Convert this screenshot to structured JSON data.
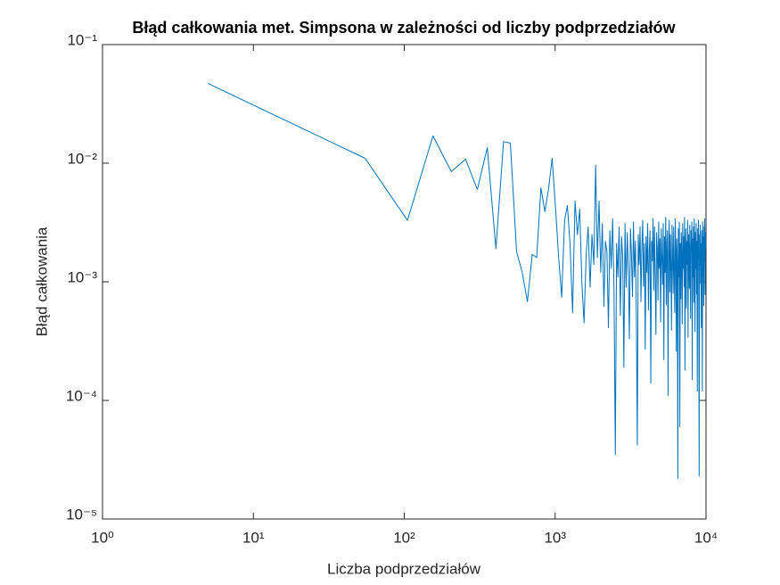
{
  "chart_data": {
    "type": "line",
    "title": "Błąd całkowania met. Simpsona w zależności od liczby podprzedziałów",
    "x_label": "Liczba podprzedziałów",
    "y_label": "Błąd całkowania",
    "x_scale": "log",
    "y_scale": "log",
    "xlim": [
      1,
      10000
    ],
    "ylim": [
      1e-05,
      0.1
    ],
    "xticks": [
      {
        "value": 1,
        "label": "10⁰"
      },
      {
        "value": 10,
        "label": "10¹"
      },
      {
        "value": 100,
        "label": "10²"
      },
      {
        "value": 1000,
        "label": "10³"
      },
      {
        "value": 10000,
        "label": "10⁴"
      }
    ],
    "yticks": [
      {
        "value": 1e-05,
        "label": "10⁻⁵"
      },
      {
        "value": 0.0001,
        "label": "10⁻⁴"
      },
      {
        "value": 0.001,
        "label": "10⁻³"
      },
      {
        "value": 0.01,
        "label": "10⁻²"
      },
      {
        "value": 0.1,
        "label": "10⁻¹"
      }
    ],
    "x": [
      5,
      55,
      105,
      155,
      205,
      255,
      305,
      355,
      405,
      455,
      505,
      555,
      605,
      655,
      705,
      755,
      805,
      855,
      905,
      955,
      1005,
      1055,
      1105,
      1155,
      1205,
      1255,
      1305,
      1355,
      1405,
      1455,
      1505,
      1555,
      1605,
      1655,
      1705,
      1755,
      1805,
      1855,
      1905,
      1955,
      2005,
      2055,
      2105,
      2155,
      2205,
      2255,
      2305,
      2355,
      2405,
      2455,
      2505,
      2555,
      2605,
      2655,
      2705,
      2755,
      2805,
      2855,
      2905,
      2955,
      3005,
      3055,
      3105,
      3155,
      3205,
      3255,
      3305,
      3355,
      3405,
      3455,
      3505,
      3555,
      3605,
      3655,
      3705,
      3755,
      3805,
      3855,
      3905,
      3955,
      4005,
      4055,
      4105,
      4155,
      4205,
      4255,
      4305,
      4355,
      4405,
      4455,
      4505,
      4555,
      4605,
      4655,
      4705,
      4755,
      4805,
      4855,
      4905,
      4955,
      5005,
      5055,
      5105,
      5155,
      5205,
      5255,
      5305,
      5355,
      5405,
      5455,
      5505,
      5555,
      5605,
      5655,
      5705,
      5755,
      5805,
      5855,
      5905,
      5955,
      6005,
      6055,
      6105,
      6155,
      6205,
      6255,
      6305,
      6355,
      6405,
      6455,
      6505,
      6555,
      6605,
      6655,
      6705,
      6755,
      6805,
      6855,
      6905,
      6955,
      7005,
      7055,
      7105,
      7155,
      7205,
      7255,
      7305,
      7355,
      7405,
      7455,
      7505,
      7555,
      7605,
      7655,
      7705,
      7755,
      7805,
      7855,
      7905,
      7955,
      8005,
      8055,
      8105,
      8155,
      8205,
      8255,
      8305,
      8355,
      8405,
      8455,
      8505,
      8555,
      8605,
      8655,
      8705,
      8755,
      8805,
      8855,
      8905,
      8955,
      9005,
      9055,
      9105,
      9155,
      9205,
      9255,
      9305,
      9355,
      9405,
      9455,
      9505,
      9555,
      9605,
      9655,
      9705,
      9755,
      9805,
      9855,
      9905,
      9955
    ],
    "series": [
      {
        "color": "#0072bd",
        "values": [
          0.047,
          0.011,
          0.0033,
          0.017,
          0.0085,
          0.0108,
          0.006,
          0.0135,
          0.0019,
          0.0152,
          0.0148,
          0.0018,
          0.0012,
          0.00068,
          0.0017,
          0.0016,
          0.0062,
          0.0039,
          0.0061,
          0.011,
          0.0043,
          0.0016,
          0.00074,
          0.0033,
          0.0044,
          0.0021,
          0.00055,
          0.0048,
          0.0025,
          0.0041,
          0.00095,
          0.00045,
          0.0017,
          0.0029,
          0.0009,
          0.0025,
          0.0014,
          0.0096,
          0.0016,
          0.0048,
          0.0012,
          0.0031,
          0.00062,
          0.0022,
          0.0018,
          0.00041,
          0.0027,
          0.0013,
          0.0034,
          0.00088,
          3.5e-05,
          0.0021,
          0.0011,
          0.0029,
          0.00052,
          0.0024,
          0.0016,
          0.00019,
          0.0031,
          0.0009,
          0.0026,
          0.0013,
          0.00033,
          0.0028,
          0.0017,
          0.00075,
          0.0032,
          0.0011,
          0.0022,
          0.00048,
          4.2e-05,
          0.0025,
          0.0014,
          0.0029,
          0.00068,
          0.0019,
          0.0033,
          0.00092,
          0.0021,
          0.00027,
          0.0024,
          0.0012,
          0.0031,
          0.00058,
          0.0018,
          0.0027,
          0.00014,
          0.0022,
          0.0015,
          0.0034,
          0.00085,
          0.0029,
          0.0011,
          0.00036,
          0.0026,
          0.0019,
          0.0007,
          0.0032,
          0.0013,
          0.0023,
          0.00046,
          0.0028,
          0.0016,
          0.00095,
          0.0031,
          0.00022,
          0.0024,
          0.0012,
          0.0035,
          0.00064,
          0.0021,
          0.0027,
          0.00011,
          0.0018,
          0.0033,
          0.00082,
          0.0025,
          0.0014,
          0.00039,
          0.003,
          0.0017,
          0.0008,
          0.0029,
          0.0012,
          0.00055,
          0.0034,
          0.0019,
          0.00026,
          0.0023,
          0.0015,
          2.2e-05,
          0.0028,
          0.0011,
          0.0032,
          6e-05,
          0.0021,
          0.00072,
          0.0026,
          0.0016,
          0.00044,
          0.0031,
          0.0013,
          0.0024,
          0.00091,
          0.0035,
          0.00018,
          0.0019,
          0.0028,
          0.0006,
          0.0022,
          0.0014,
          0.0033,
          0.00034,
          0.0025,
          0.0017,
          0.00088,
          0.003,
          0.0012,
          0.00049,
          0.0027,
          0.0018,
          0.0032,
          0.00015,
          0.0023,
          0.0011,
          0.0029,
          0.00067,
          0.0034,
          0.002,
          0.00038,
          0.0026,
          0.0013,
          0.0031,
          0.00079,
          0.0022,
          0.00012,
          0.0028,
          0.0016,
          0.0033,
          0.00053,
          2.3e-05,
          0.0025,
          0.0014,
          0.003,
          0.00097,
          0.0021,
          0.00041,
          0.0027,
          0.0017,
          0.00012,
          0.0032,
          0.0011,
          0.0024,
          0.00063,
          0.0029,
          0.0015,
          0.0034,
          0.00078,
          0.0026,
          0.0019
        ]
      }
    ]
  }
}
